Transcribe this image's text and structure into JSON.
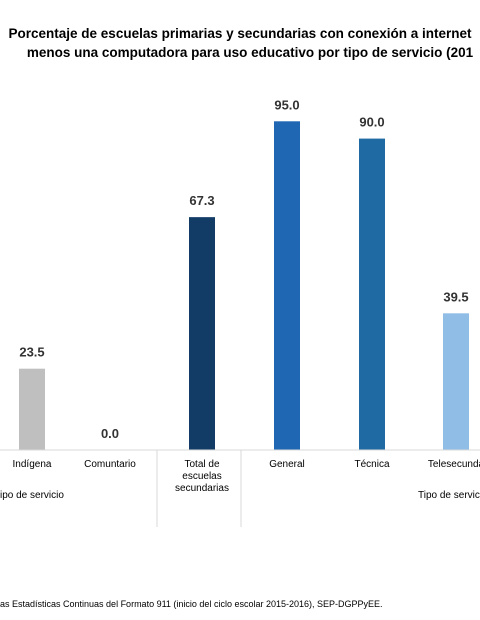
{
  "chart_data": {
    "type": "bar",
    "title_lines": [
      "Porcentaje de escuelas primarias y secundarias con conexión a internet",
      "menos una computadora para uso educativo por tipo de servicio (201"
    ],
    "categories": [
      "Indígena",
      "Comuntario",
      "Total de escuelas secundarias",
      "General",
      "Técnica",
      "Telesecunda"
    ],
    "category_label_lines": [
      [
        "Indígena"
      ],
      [
        "Comuntario"
      ],
      [
        "Total de",
        "escuelas",
        "secundarias"
      ],
      [
        "General"
      ],
      [
        "Técnica"
      ],
      [
        "Telesecunda"
      ]
    ],
    "values": [
      23.5,
      0.0,
      67.3,
      95.0,
      90.0,
      39.5
    ],
    "value_labels": [
      "23.5",
      "0.0",
      "67.3",
      "95.0",
      "90.0",
      "39.5"
    ],
    "colors": [
      "#bfbfbf",
      "#bfbfbf",
      "#123b66",
      "#1f66b3",
      "#1f6aa3",
      "#8fbde6"
    ],
    "ylim": [
      0,
      100
    ],
    "group_labels": [
      "ipo de servicio",
      "Tipo de servic"
    ],
    "xlabel": "",
    "ylabel": "",
    "grid": false,
    "legend": "none",
    "source": "as Estadísticas Continuas del Formato 911 (inicio del ciclo escolar 2015-2016), SEP-DGPPyEE."
  }
}
